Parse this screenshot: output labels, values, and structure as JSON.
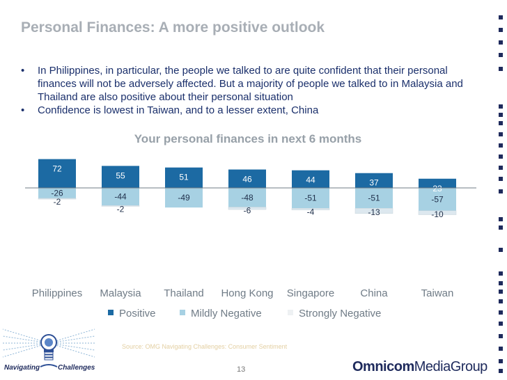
{
  "title": "Personal Finances: A more positive outlook",
  "bullets": [
    "In  Philippines, in particular, the people we talked to are quite confident that their personal finances will not be adversely affected. But a majority of people we talked to in Malaysia and Thailand are also positive about their personal situation",
    "Confidence is lowest in Taiwan, and to a lesser extent, China"
  ],
  "source": "Source: OMG Navigating Challenges: Consumer Sentiment",
  "page_number": "13",
  "logos": {
    "left": {
      "word1": "Navigating",
      "word2": "Challenges"
    },
    "right": {
      "bold": "Omnicom",
      "light": "MediaGroup"
    }
  },
  "colors": {
    "positive": "#1c6aa3",
    "mildly_negative": "#a7d1e3",
    "strongly_negative": "#dde8ef"
  },
  "chart_data": {
    "type": "bar",
    "title": "Your personal finances in next 6 months",
    "categories": [
      "Philippines",
      "Malaysia",
      "Thailand",
      "Hong Kong",
      "Singapore",
      "China",
      "Taiwan"
    ],
    "series": [
      {
        "name": "Positive",
        "values": [
          72,
          55,
          51,
          46,
          44,
          37,
          23
        ]
      },
      {
        "name": "Mildly Negative",
        "values": [
          -26,
          -44,
          -49,
          -48,
          -51,
          -51,
          -57
        ]
      },
      {
        "name": "Strongly Negative",
        "values": [
          -2,
          -2,
          0,
          -6,
          -4,
          -13,
          -10
        ]
      }
    ],
    "value_labels": [
      {
        "positive": "72",
        "mild": "-26",
        "strong": "-2"
      },
      {
        "positive": "55",
        "mild": "-44",
        "strong": "-2"
      },
      {
        "positive": "51",
        "mild": "-49",
        "strong": ""
      },
      {
        "positive": "46",
        "mild": "-48",
        "strong": "-6"
      },
      {
        "positive": "44",
        "mild": "-51",
        "strong": "-4"
      },
      {
        "positive": "37",
        "mild": "-51",
        "strong": "-13"
      },
      {
        "positive": "23",
        "mild": "-57",
        "strong": "-10"
      }
    ],
    "legend": [
      "Positive",
      "Mildly Negative",
      "Strongly Negative"
    ],
    "legend_position": "bottom",
    "ylim": [
      -70,
      75
    ],
    "grid": false,
    "xlabel": "",
    "ylabel": ""
  }
}
